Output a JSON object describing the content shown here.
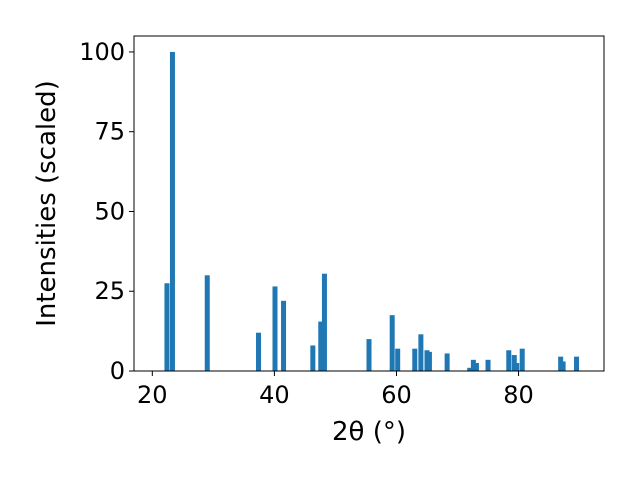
{
  "chart_data": {
    "type": "bar",
    "xlabel": "2θ (°)",
    "ylabel": "Intensities (scaled)",
    "xlim": [
      17,
      94
    ],
    "ylim": [
      0,
      105
    ],
    "x_ticks": [
      "20",
      "40",
      "60",
      "80"
    ],
    "y_ticks": [
      "0",
      "25",
      "50",
      "75",
      "100"
    ],
    "bar_color": "#1f77b4",
    "grid": false,
    "series": [
      {
        "x": [
          22.4,
          23.3,
          29.0,
          37.4,
          40.1,
          41.5,
          46.3,
          47.6,
          48.2,
          55.5,
          59.3,
          60.2,
          63.0,
          64.0,
          65.0,
          65.4,
          68.3,
          72.0,
          72.6,
          73.1,
          75.0,
          78.4,
          79.3,
          79.7,
          80.6,
          86.9,
          87.3,
          89.5
        ],
        "y": [
          27.5,
          100,
          30,
          12,
          26.5,
          22,
          8,
          15.5,
          30.5,
          10,
          17.5,
          7,
          7,
          11.5,
          6.5,
          6,
          5.5,
          1,
          3.5,
          2.5,
          3.5,
          6.5,
          5,
          2.5,
          7,
          4.5,
          3,
          4.5
        ]
      }
    ]
  }
}
